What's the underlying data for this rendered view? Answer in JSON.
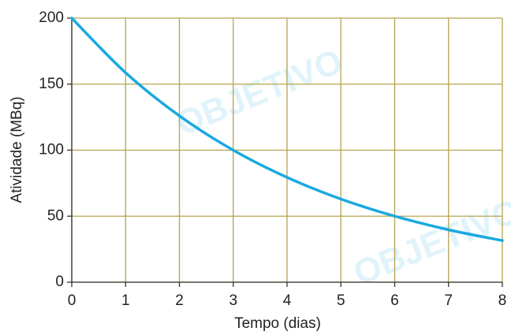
{
  "chart_data": {
    "type": "line",
    "x": [
      0,
      1,
      2,
      3,
      4,
      5,
      6,
      7,
      8
    ],
    "series": [
      {
        "name": "Atividade",
        "color": "#1aa9e0",
        "values": [
          200,
          158.7,
          126,
          100,
          79.4,
          63,
          50,
          39.7,
          31.5
        ]
      }
    ],
    "xlabel": "Tempo (dias)",
    "ylabel": "Atividade (MBq)",
    "xlim": [
      0,
      8
    ],
    "xticks": [
      0,
      1,
      2,
      3,
      4,
      5,
      6,
      7,
      8
    ],
    "ylim": [
      0,
      200
    ],
    "yticks": [
      0,
      50,
      100,
      150,
      200
    ],
    "grid": true,
    "watermark": "OBJETIVO"
  }
}
